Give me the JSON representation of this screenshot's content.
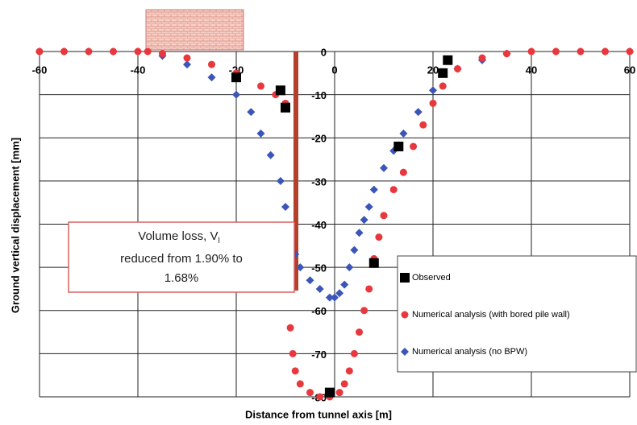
{
  "chart_data": {
    "type": "scatter",
    "x_label": "Distance from tunnel axis [m]",
    "y_label": "Ground vertical displacement [mm]",
    "annotation": {
      "main": "Volume loss, V",
      "subscript": "l",
      "lines": [
        "reduced from 1.90% to",
        "1.68%"
      ]
    },
    "xlim": [
      -60,
      60
    ],
    "xticks": [
      -60,
      -40,
      -20,
      0,
      20,
      40,
      60
    ],
    "ylim": [
      -80,
      0
    ],
    "yticks": [
      0,
      -10,
      -20,
      -30,
      -40,
      -50,
      -60,
      -70,
      -80
    ],
    "grid": true,
    "series": [
      {
        "name": "Observed",
        "color": "#000000",
        "marker": "square",
        "x": [
          -20,
          -11,
          -10,
          -1,
          8,
          13,
          22,
          23
        ],
        "values": [
          -6,
          -9,
          -13,
          -79,
          -49,
          -22,
          -5,
          -2
        ]
      },
      {
        "name": "Numerical analysis (with bored pile wall)",
        "color": "#e8383d",
        "marker": "circle",
        "x": [
          -60,
          -55,
          -50,
          -45,
          -40,
          -38,
          -35,
          -30,
          -25,
          -20,
          -15,
          -12,
          -10,
          -9,
          -8.5,
          -8,
          -7,
          -5,
          -3,
          -1,
          1,
          2,
          3,
          4,
          5,
          6,
          7,
          8,
          9,
          10,
          12,
          14,
          16,
          18,
          20,
          22,
          25,
          30,
          35,
          40,
          45,
          50,
          55,
          60
        ],
        "values": [
          0,
          0,
          0,
          0,
          0,
          0,
          -0.5,
          -1.5,
          -3,
          -5,
          -8,
          -10,
          -12,
          -64,
          -70,
          -74,
          -77,
          -79,
          -80,
          -80,
          -79,
          -77,
          -74,
          -70,
          -65,
          -60,
          -55,
          -48,
          -43,
          -38,
          -32,
          -28,
          -22,
          -17,
          -12,
          -8,
          -4,
          -1.5,
          -0.5,
          0,
          0,
          0,
          0,
          0
        ]
      },
      {
        "name": "Numerical analysis (no BPW)",
        "color": "#3b55b8",
        "marker": "diamond",
        "x": [
          -60,
          -55,
          -50,
          -45,
          -40,
          -35,
          -30,
          -25,
          -20,
          -17,
          -15,
          -13,
          -11,
          -10,
          -9,
          -8,
          -7,
          -5,
          -3,
          -1,
          0,
          1,
          2,
          3,
          4,
          5,
          6,
          7,
          8,
          10,
          12,
          14,
          17,
          20,
          25,
          30,
          35,
          40,
          45,
          50,
          55,
          60
        ],
        "values": [
          0,
          0,
          0,
          0,
          0,
          -1,
          -3,
          -6,
          -10,
          -14,
          -19,
          -24,
          -30,
          -36,
          -42,
          -47,
          -50,
          -53,
          -55,
          -57,
          -57,
          -56,
          -54,
          -50,
          -46,
          -42,
          -39,
          -36,
          -32,
          -27,
          -23,
          -19,
          -14,
          -9,
          -4,
          -2,
          -0.5,
          0,
          0,
          0,
          0,
          0
        ]
      }
    ]
  }
}
